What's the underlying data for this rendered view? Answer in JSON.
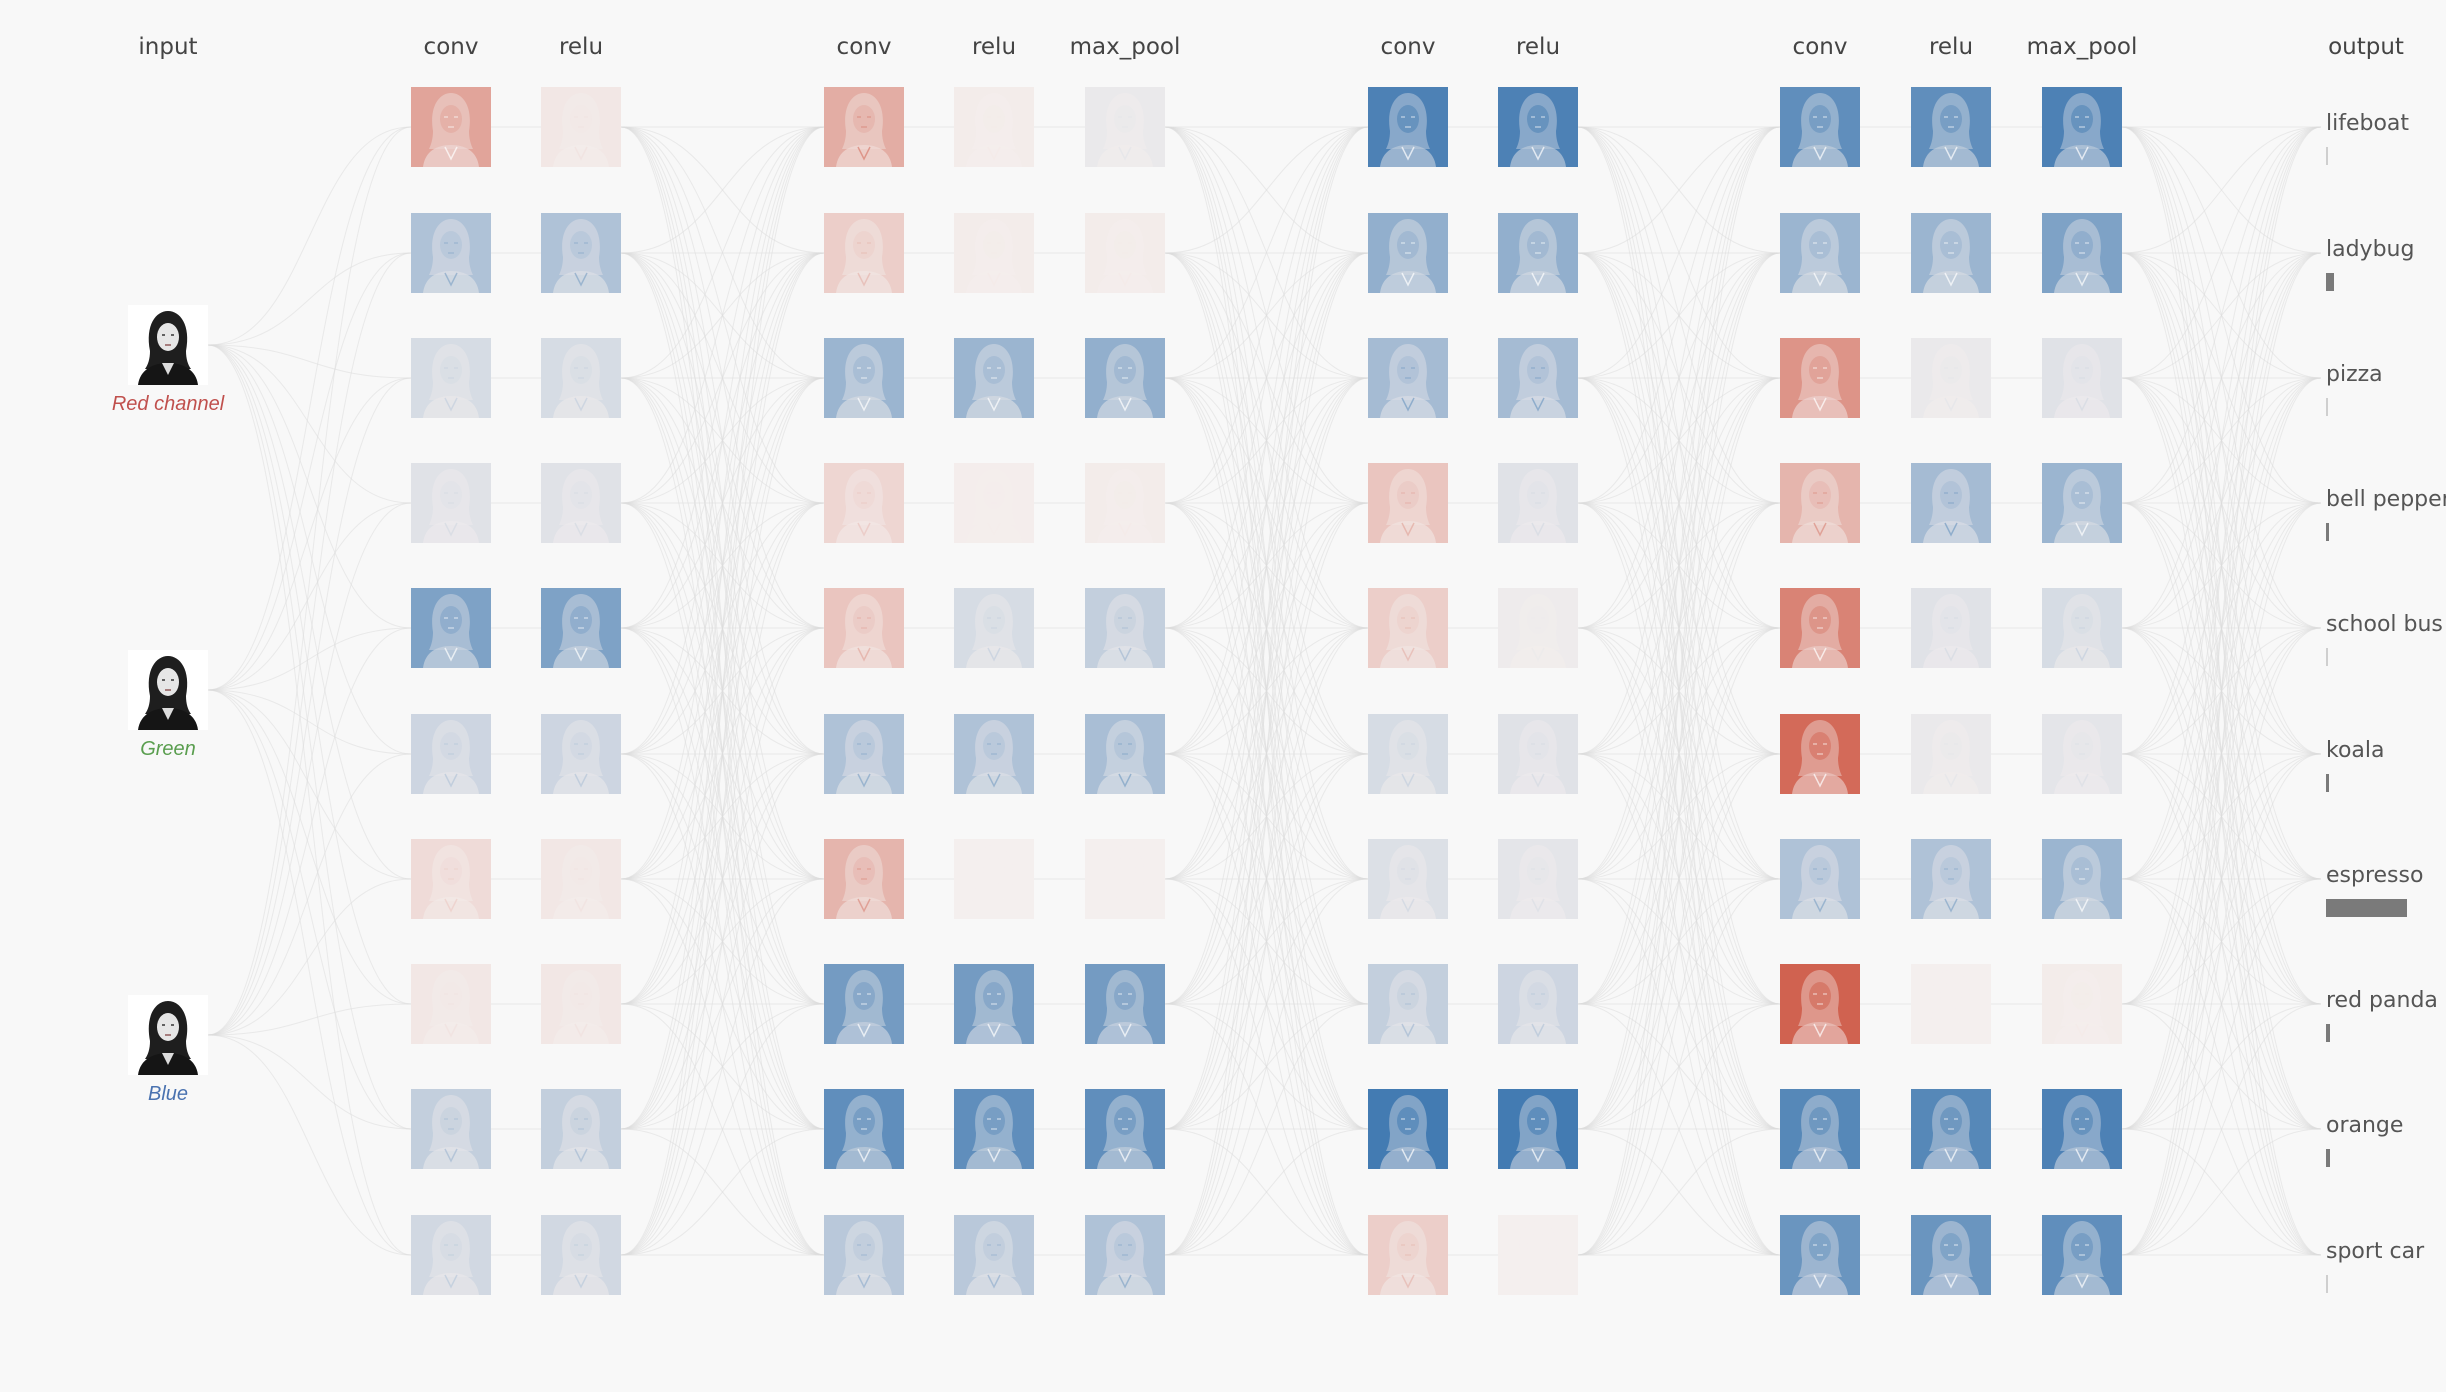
{
  "colors": {
    "background": "#f8f8f8",
    "positive_activation": "#2f6eab",
    "negative_activation": "#c8402a",
    "neutral_activation": "#f4efee",
    "edge": "#dcdcdc",
    "red_label": "#c0504d",
    "green_label": "#5a9e4f",
    "blue_label": "#4a72b0",
    "prob_bar": "#7a7a7a"
  },
  "columns": [
    {
      "id": "input",
      "label": "input"
    },
    {
      "id": "conv_1_1",
      "label": "conv"
    },
    {
      "id": "relu_1_1",
      "label": "relu"
    },
    {
      "id": "conv_1_2",
      "label": "conv"
    },
    {
      "id": "relu_1_2",
      "label": "relu"
    },
    {
      "id": "max_pool_1",
      "label": "max_pool"
    },
    {
      "id": "conv_2_1",
      "label": "conv"
    },
    {
      "id": "relu_2_1",
      "label": "relu"
    },
    {
      "id": "conv_2_2",
      "label": "conv"
    },
    {
      "id": "relu_2_2",
      "label": "relu"
    },
    {
      "id": "max_pool_2",
      "label": "max_pool"
    },
    {
      "id": "output",
      "label": "output"
    }
  ],
  "inputs": [
    {
      "channel": "red",
      "label": "Red channel",
      "color": "#c0504d"
    },
    {
      "channel": "green",
      "label": "Green",
      "color": "#5a9e4f"
    },
    {
      "channel": "blue",
      "label": "Blue",
      "color": "#4a72b0"
    }
  ],
  "activations": {
    "conv_1_1": [
      0.45,
      -0.35,
      -0.15,
      -0.1,
      -0.6,
      -0.2,
      0.12,
      0.05,
      -0.25,
      -0.18
    ],
    "relu_1_1": [
      0.05,
      -0.35,
      -0.15,
      -0.1,
      -0.6,
      -0.2,
      0.05,
      0.05,
      -0.25,
      -0.18
    ],
    "conv_1_2": [
      0.4,
      0.2,
      -0.45,
      0.15,
      0.25,
      -0.35,
      0.35,
      -0.65,
      -0.75,
      -0.3
    ],
    "relu_1_2": [
      0.02,
      0.02,
      -0.45,
      0.01,
      -0.15,
      -0.35,
      0.0,
      -0.65,
      -0.75,
      -0.3
    ],
    "max_pool_1": [
      -0.05,
      0.02,
      -0.5,
      0.02,
      -0.25,
      -0.38,
      0.0,
      -0.65,
      -0.75,
      -0.35
    ],
    "conv_2_1": [
      -0.85,
      -0.5,
      -0.4,
      0.25,
      0.2,
      -0.15,
      -0.12,
      -0.25,
      -0.9,
      0.2
    ],
    "relu_2_1": [
      -0.85,
      -0.5,
      -0.4,
      -0.1,
      -0.03,
      -0.1,
      -0.08,
      -0.2,
      -0.9,
      0.0
    ],
    "conv_2_2": [
      -0.75,
      -0.45,
      0.55,
      0.35,
      0.65,
      0.8,
      -0.35,
      0.85,
      -0.8,
      -0.7
    ],
    "relu_2_2": [
      -0.75,
      -0.45,
      -0.05,
      -0.4,
      -0.1,
      -0.05,
      -0.35,
      0.0,
      -0.8,
      -0.7
    ],
    "max_pool_2": [
      -0.85,
      -0.6,
      -0.1,
      -0.45,
      -0.15,
      -0.08,
      -0.45,
      0.02,
      -0.85,
      -0.75
    ]
  },
  "classes": [
    {
      "label": "lifeboat",
      "prob": 0.01
    },
    {
      "label": "ladybug",
      "prob": 0.06
    },
    {
      "label": "pizza",
      "prob": 0.0
    },
    {
      "label": "bell pepper",
      "prob": 0.02
    },
    {
      "label": "school bus",
      "prob": 0.0
    },
    {
      "label": "koala",
      "prob": 0.02
    },
    {
      "label": "espresso",
      "prob": 0.62
    },
    {
      "label": "red panda",
      "prob": 0.03
    },
    {
      "label": "orange",
      "prob": 0.03
    },
    {
      "label": "sport car",
      "prob": 0.01
    }
  ]
}
